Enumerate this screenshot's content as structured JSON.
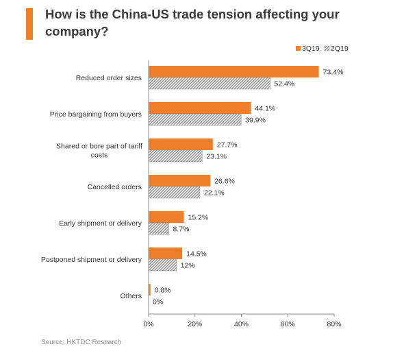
{
  "title": "How is the China-US trade tension affecting your company?",
  "source": "Source: HKTDC Research",
  "colors": {
    "accent": "#f07f2b",
    "series1": "#f07f2b",
    "series2": "#8a8a8a"
  },
  "chart_data": {
    "type": "bar",
    "orientation": "horizontal",
    "categories": [
      "Reduced order sizes",
      "Price bargaining from buyers",
      "Shared or bore part of tariff costs",
      "Cancelled orders",
      "Early shipment or delivery",
      "Postponed shipment or delivery",
      "Others"
    ],
    "series": [
      {
        "name": "3Q19",
        "values": [
          73.4,
          44.1,
          27.7,
          26.6,
          15.2,
          14.5,
          0.8
        ],
        "labels": [
          "73.4%",
          "44.1%",
          "27.7%",
          "26.6%",
          "15.2%",
          "14.5%",
          "0.8%"
        ]
      },
      {
        "name": "2Q19",
        "values": [
          52.4,
          39.9,
          23.1,
          22.1,
          8.7,
          12,
          0
        ],
        "labels": [
          "52.4%",
          "39.9%",
          "23.1%",
          "22.1%",
          "8.7%",
          "12%",
          "0%"
        ]
      }
    ],
    "xlim": [
      0,
      80
    ],
    "xticks": [
      "0%",
      "20%",
      "40%",
      "60%",
      "80%"
    ],
    "legend_position": "top-right",
    "grid": false
  }
}
